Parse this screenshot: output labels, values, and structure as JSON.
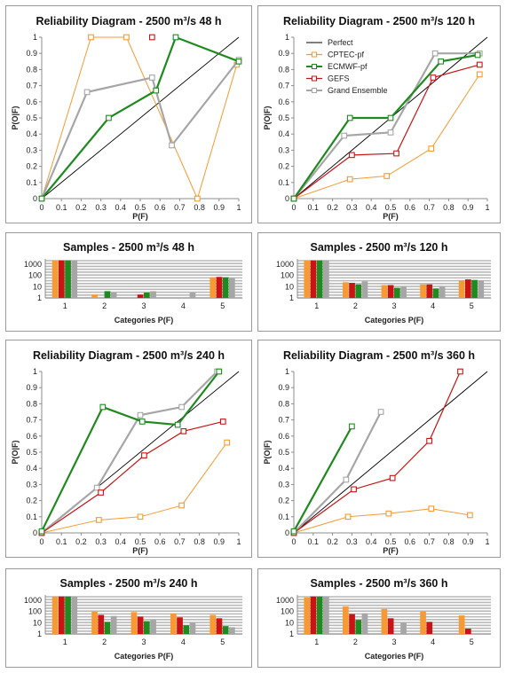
{
  "colors": {
    "Perfect": "#000000",
    "CPTEC-pf": "#f79a33",
    "ECMWF-pf": "#1f8a1f",
    "GEFS": "#c81414",
    "Grand Ensemble": "#a6a6a6"
  },
  "chart_data": [
    {
      "id": "rel48",
      "type": "line",
      "title": "Reliability Diagram - 2500 m³/s 48 h",
      "xlabel": "P(F)",
      "ylabel": "P(O|F)",
      "xlim": [
        0,
        1
      ],
      "ylim": [
        0,
        1
      ],
      "ticks": [
        "0",
        "0.1",
        "0.2",
        "0.3",
        "0.4",
        "0.5",
        "0.6",
        "0.7",
        "0.8",
        "0.9",
        "1"
      ],
      "grid": false,
      "legend": false,
      "series": [
        {
          "name": "Perfect",
          "points": [
            [
              0,
              0
            ],
            [
              1,
              1
            ]
          ]
        },
        {
          "name": "CPTEC-pf",
          "points": [
            [
              0.0,
              0.0
            ],
            [
              0.25,
              1.0
            ],
            [
              0.43,
              1.0
            ],
            [
              0.79,
              0.0
            ],
            [
              0.99,
              0.83
            ]
          ]
        },
        {
          "name": "ECMWF-pf",
          "points": [
            [
              0.0,
              0.0
            ],
            [
              0.34,
              0.5
            ],
            [
              0.58,
              0.67
            ],
            [
              0.68,
              1.0
            ],
            [
              1.0,
              0.85
            ]
          ]
        },
        {
          "name": "GEFS",
          "points": [
            [
              0.56,
              1.0
            ]
          ]
        },
        {
          "name": "Grand Ensemble",
          "points": [
            [
              0.0,
              0.0
            ],
            [
              0.23,
              0.66
            ],
            [
              0.56,
              0.75
            ],
            [
              0.66,
              0.33
            ],
            [
              1.0,
              0.86
            ]
          ]
        }
      ]
    },
    {
      "id": "rel120",
      "type": "line",
      "title": "Reliability Diagram - 2500 m³/s 120 h",
      "xlabel": "P(F)",
      "ylabel": "P(O|F)",
      "xlim": [
        0,
        1
      ],
      "ylim": [
        0,
        1
      ],
      "ticks": [
        "0",
        "0.1",
        "0.2",
        "0.3",
        "0.4",
        "0.5",
        "0.6",
        "0.7",
        "0.8",
        "0.9",
        "1"
      ],
      "grid": false,
      "legend": true,
      "legend_position": "top-left",
      "series": [
        {
          "name": "Perfect",
          "points": [
            [
              0,
              0
            ],
            [
              1,
              1
            ]
          ]
        },
        {
          "name": "CPTEC-pf",
          "points": [
            [
              0.0,
              0.0
            ],
            [
              0.29,
              0.12
            ],
            [
              0.48,
              0.14
            ],
            [
              0.71,
              0.31
            ],
            [
              0.96,
              0.77
            ]
          ]
        },
        {
          "name": "ECMWF-pf",
          "points": [
            [
              0.0,
              0.0
            ],
            [
              0.29,
              0.5
            ],
            [
              0.5,
              0.5
            ],
            [
              0.76,
              0.85
            ],
            [
              0.95,
              0.89
            ]
          ]
        },
        {
          "name": "GEFS",
          "points": [
            [
              0.0,
              0.0
            ],
            [
              0.3,
              0.27
            ],
            [
              0.53,
              0.28
            ],
            [
              0.72,
              0.75
            ],
            [
              0.96,
              0.83
            ]
          ]
        },
        {
          "name": "Grand Ensemble",
          "points": [
            [
              0.0,
              0.0
            ],
            [
              0.26,
              0.39
            ],
            [
              0.5,
              0.41
            ],
            [
              0.73,
              0.9
            ],
            [
              0.96,
              0.9
            ]
          ]
        }
      ]
    },
    {
      "id": "samp48",
      "type": "bar",
      "title": "Samples - 2500 m³/s 48 h",
      "xlabel": "Categories P(F)",
      "yscale": "log",
      "ylim": [
        1,
        3000
      ],
      "yticks": [
        "1",
        "10",
        "100",
        "1000"
      ],
      "categories": [
        "1",
        "2",
        "3",
        "4",
        "5"
      ],
      "series": [
        {
          "name": "CPTEC-pf",
          "values": [
            2200,
            2,
            0,
            0,
            70
          ]
        },
        {
          "name": "GEFS",
          "values": [
            2200,
            0,
            2,
            0,
            75
          ]
        },
        {
          "name": "ECMWF-pf",
          "values": [
            2200,
            4,
            3,
            0,
            70
          ]
        },
        {
          "name": "Grand Ensemble",
          "values": [
            2200,
            3,
            4,
            3,
            60
          ]
        }
      ]
    },
    {
      "id": "samp120",
      "type": "bar",
      "title": "Samples - 2500 m³/s 120 h",
      "xlabel": "Categories P(F)",
      "yscale": "log",
      "ylim": [
        1,
        3000
      ],
      "yticks": [
        "1",
        "10",
        "100",
        "1000"
      ],
      "categories": [
        "1",
        "2",
        "3",
        "4",
        "5"
      ],
      "series": [
        {
          "name": "CPTEC-pf",
          "values": [
            2200,
            25,
            14,
            16,
            35
          ]
        },
        {
          "name": "GEFS",
          "values": [
            2200,
            22,
            14,
            16,
            45
          ]
        },
        {
          "name": "ECMWF-pf",
          "values": [
            2200,
            16,
            8,
            7,
            40
          ]
        },
        {
          "name": "Grand Ensemble",
          "values": [
            2200,
            30,
            10,
            10,
            35
          ]
        }
      ]
    },
    {
      "id": "rel240",
      "type": "line",
      "title": "Reliability Diagram - 2500 m³/s 240 h",
      "xlabel": "P(F)",
      "ylabel": "P(O|F)",
      "xlim": [
        0,
        1
      ],
      "ylim": [
        0,
        1
      ],
      "ticks": [
        "0",
        "0.1",
        "0.2",
        "0.3",
        "0.4",
        "0.5",
        "0.6",
        "0.7",
        "0.8",
        "0.9",
        "1"
      ],
      "grid": false,
      "legend": false,
      "series": [
        {
          "name": "Perfect",
          "points": [
            [
              0,
              0
            ],
            [
              1,
              1
            ]
          ]
        },
        {
          "name": "CPTEC-pf",
          "points": [
            [
              0.0,
              0.0
            ],
            [
              0.29,
              0.08
            ],
            [
              0.5,
              0.1
            ],
            [
              0.71,
              0.17
            ],
            [
              0.94,
              0.56
            ]
          ]
        },
        {
          "name": "ECMWF-pf",
          "points": [
            [
              0.0,
              0.01
            ],
            [
              0.31,
              0.78
            ],
            [
              0.51,
              0.69
            ],
            [
              0.69,
              0.67
            ],
            [
              0.9,
              1.0
            ]
          ]
        },
        {
          "name": "GEFS",
          "points": [
            [
              0.0,
              0.0
            ],
            [
              0.3,
              0.25
            ],
            [
              0.52,
              0.48
            ],
            [
              0.72,
              0.63
            ],
            [
              0.92,
              0.69
            ]
          ]
        },
        {
          "name": "Grand Ensemble",
          "points": [
            [
              0.0,
              0.0
            ],
            [
              0.28,
              0.28
            ],
            [
              0.5,
              0.73
            ],
            [
              0.71,
              0.78
            ],
            [
              0.89,
              1.0
            ]
          ]
        }
      ]
    },
    {
      "id": "rel360",
      "type": "line",
      "title": "Reliability Diagram - 2500 m³/s 360 h",
      "xlabel": "P(F)",
      "ylabel": "P(O|F)",
      "xlim": [
        0,
        1
      ],
      "ylim": [
        0,
        1
      ],
      "ticks": [
        "0",
        "0.1",
        "0.2",
        "0.3",
        "0.4",
        "0.5",
        "0.6",
        "0.7",
        "0.8",
        "0.9",
        "1"
      ],
      "grid": false,
      "legend": false,
      "series": [
        {
          "name": "Perfect",
          "points": [
            [
              0,
              0
            ],
            [
              1,
              1
            ]
          ]
        },
        {
          "name": "CPTEC-pf",
          "points": [
            [
              0.0,
              0.0
            ],
            [
              0.28,
              0.1
            ],
            [
              0.49,
              0.12
            ],
            [
              0.71,
              0.15
            ],
            [
              0.91,
              0.11
            ]
          ]
        },
        {
          "name": "ECMWF-pf",
          "points": [
            [
              0.0,
              0.01
            ],
            [
              0.3,
              0.66
            ]
          ]
        },
        {
          "name": "GEFS",
          "points": [
            [
              0.0,
              0.0
            ],
            [
              0.31,
              0.27
            ],
            [
              0.51,
              0.34
            ],
            [
              0.7,
              0.57
            ],
            [
              0.86,
              1.0
            ]
          ]
        },
        {
          "name": "Grand Ensemble",
          "points": [
            [
              0.0,
              0.0
            ],
            [
              0.27,
              0.33
            ],
            [
              0.45,
              0.75
            ]
          ]
        }
      ]
    },
    {
      "id": "samp240",
      "type": "bar",
      "title": "Samples - 2500 m³/s 240 h",
      "xlabel": "Categories P(F)",
      "yscale": "log",
      "ylim": [
        1,
        3000
      ],
      "yticks": [
        "1",
        "10",
        "100",
        "1000"
      ],
      "categories": [
        "1",
        "2",
        "3",
        "4",
        "5"
      ],
      "series": [
        {
          "name": "CPTEC-pf",
          "values": [
            2200,
            100,
            90,
            70,
            50
          ]
        },
        {
          "name": "GEFS",
          "values": [
            2200,
            50,
            35,
            30,
            25
          ]
        },
        {
          "name": "ECMWF-pf",
          "values": [
            2200,
            12,
            14,
            6,
            5
          ]
        },
        {
          "name": "Grand Ensemble",
          "values": [
            2200,
            40,
            18,
            10,
            4
          ]
        }
      ]
    },
    {
      "id": "samp360",
      "type": "bar",
      "title": "Samples - 2500 m³/s 360 h",
      "xlabel": "Categories P(F)",
      "yscale": "log",
      "ylim": [
        1,
        3000
      ],
      "yticks": [
        "1",
        "10",
        "100",
        "1000"
      ],
      "categories": [
        "1",
        "2",
        "3",
        "4",
        "5"
      ],
      "series": [
        {
          "name": "CPTEC-pf",
          "values": [
            1800,
            280,
            170,
            100,
            45
          ]
        },
        {
          "name": "GEFS",
          "values": [
            2200,
            60,
            25,
            12,
            3
          ]
        },
        {
          "name": "ECMWF-pf",
          "values": [
            2200,
            18,
            0,
            0,
            0
          ]
        },
        {
          "name": "Grand Ensemble",
          "values": [
            2200,
            70,
            10,
            0,
            0
          ]
        }
      ]
    }
  ]
}
